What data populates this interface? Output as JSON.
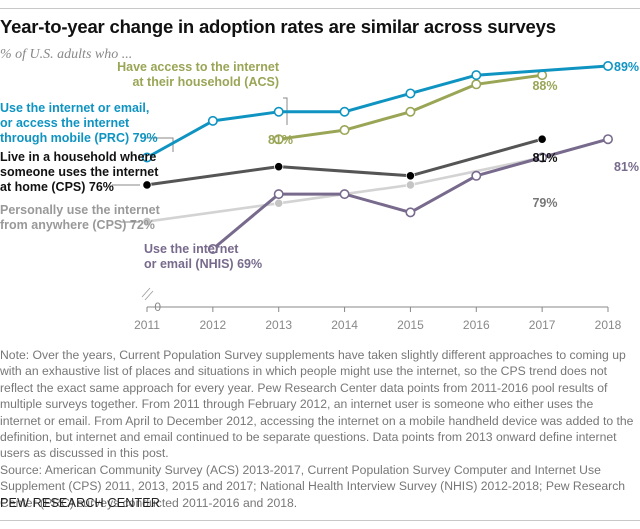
{
  "header": {
    "title": "Year-to-year change in adoption rates are similar across surveys",
    "subtitle": "% of U.S. adults who ..."
  },
  "chart_data": {
    "type": "line",
    "title": "Year-to-year change in adoption rates are similar across surveys",
    "subtitle": "% of U.S. adults who ...",
    "xlabel": "",
    "ylabel": "",
    "x": [
      2011,
      2012,
      2013,
      2014,
      2015,
      2016,
      2017,
      2018
    ],
    "x_tick_labels": [
      "2011",
      "2012",
      "2013",
      "2014",
      "2015",
      "2016",
      "2017",
      "2018"
    ],
    "y_tick_labels": [
      "0"
    ],
    "ylim": [
      0,
      100
    ],
    "axis_break": true,
    "grid": false,
    "legend": "direct-labels",
    "series": [
      {
        "name": "Use the internet or email, or access the internet through mobile (PRC)",
        "label_lines": [
          "Use the internet or email,",
          "or access the internet",
          "through mobile (PRC) 79%"
        ],
        "color": "#0f94c2",
        "marker": "open",
        "x": [
          2011,
          2012,
          2013,
          2014,
          2015,
          2016,
          2018
        ],
        "values": [
          79,
          83,
          84,
          84,
          86,
          88,
          89
        ],
        "start_label": "79%",
        "end_label": "89%"
      },
      {
        "name": "Have access to the internet at their household (ACS)",
        "label_lines": [
          "Have access to the internet",
          "at their household (ACS)"
        ],
        "color": "#9aa556",
        "marker": "open",
        "x": [
          2013,
          2014,
          2015,
          2016,
          2017
        ],
        "values": [
          81,
          82,
          84,
          87,
          88
        ],
        "start_label": "81%",
        "end_label": "88%"
      },
      {
        "name": "Live in a household where someone uses the internet at home (CPS)",
        "label_lines": [
          "Live in a household where",
          "someone uses the internet",
          "at home (CPS) 76%"
        ],
        "color": "#555555",
        "marker_color": "#000000",
        "marker": "filled",
        "x": [
          2011,
          2013,
          2015,
          2017
        ],
        "values": [
          76,
          78,
          77,
          81
        ],
        "start_label": "76%",
        "end_label": "81%"
      },
      {
        "name": "Personally use the internet from anywhere (CPS)",
        "label_lines": [
          "Personally use the internet",
          "from anywhere (CPS) 72%"
        ],
        "color": "#d3d3d3",
        "marker_color": "#c4c4c4",
        "label_color": "#999999",
        "marker": "filled",
        "x": [
          2011,
          2013,
          2015,
          2017
        ],
        "values": [
          72,
          74,
          76,
          79
        ],
        "start_label": "72%",
        "end_label": "79%"
      },
      {
        "name": "Use the internet or email (NHIS)",
        "label_lines": [
          "Use the internet",
          "or email (NHIS) 69%"
        ],
        "color": "#776a8c",
        "marker": "open",
        "x": [
          2012,
          2013,
          2014,
          2015,
          2016,
          2017,
          2018
        ],
        "values": [
          69,
          75,
          75,
          73,
          77,
          79,
          81
        ],
        "start_label": "69%",
        "end_label": "81%"
      }
    ]
  },
  "notes": {
    "note": "Note: Over the years, Current Population Survey supplements have taken slightly different approaches to coming up with an exhaustive list of places and situations in which people might use the internet, so the CPS trend does not reflect the exact same approach for every year. Pew Research Center data points from 2011-2016 pool results of multiple surveys together. From 2011 through February 2012, an internet user is someone who either uses the internet or email. From April to December 2012, accessing the internet on a mobile handheld device was added to the definition, but internet and email continued to be separate questions. Data points from 2013 onward define internet users as discussed in this post.",
    "source": "Source: American Community Survey (ACS) 2013-2017, Current Population Survey Computer and Internet Use Supplement (CPS) 2011, 2013, 2015 and 2017; National Health Interview Survey (NHIS) 2012-2018; Pew Research Center (PRC) surveys conducted 2011-2016 and 2018."
  },
  "footer": {
    "brand": "PEW RESEARCH CENTER"
  }
}
